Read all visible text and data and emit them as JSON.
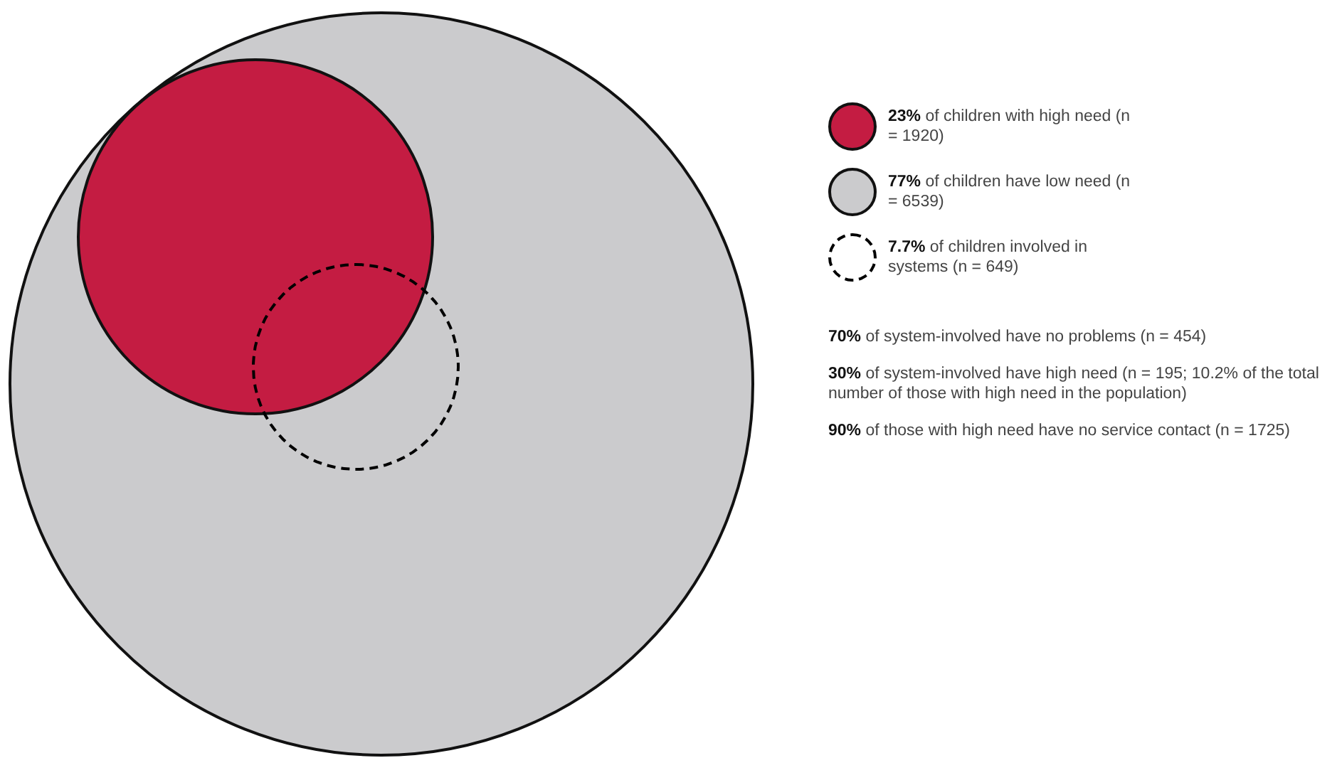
{
  "chart_data": {
    "type": "other",
    "categories": [
      "of children with high need (n = 1920)",
      "of children have low need (n = 6539)",
      "of children involved in systems (n = 649)"
    ],
    "values": [
      23,
      77,
      7.7
    ],
    "value_labels": [
      "23%",
      "77%",
      "7.7%"
    ],
    "colors": [
      "#c41c42",
      "#cbcbcd",
      "#000000"
    ],
    "annotations": [
      "70% of system-involved have no problems (n = 454)",
      "30% of system-involved have high need (n = 195; 10.2% of the total number of those with high need in the population)",
      "90% of those with high need have no service contact (n = 1725)"
    ]
  }
}
